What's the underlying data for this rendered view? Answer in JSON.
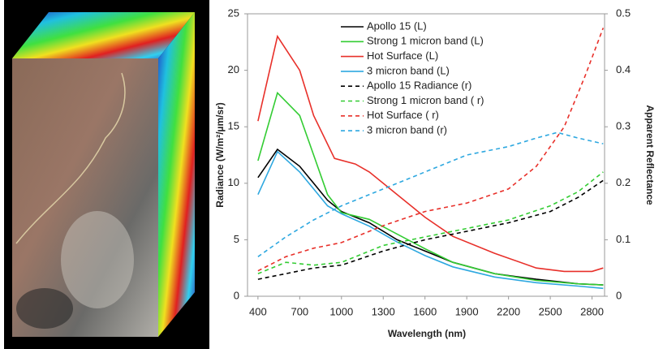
{
  "chart_data": {
    "type": "line",
    "x_label": "Wavelength (nm)",
    "y_label": "Radiance (W/m²/µm/sr)",
    "y2_label": "Apparent Reflectance",
    "xlim": [
      325,
      2890
    ],
    "xticks": [
      400,
      700,
      1000,
      1300,
      1600,
      1900,
      2200,
      2500,
      2800
    ],
    "ylim": [
      0,
      25
    ],
    "yticks": [
      0,
      5,
      10,
      15,
      20,
      25
    ],
    "y2lim": [
      0,
      0.5
    ],
    "y2ticks": [
      0,
      0.1,
      0.2,
      0.3,
      0.4,
      0.5
    ],
    "legend": "upper-left",
    "series": [
      {
        "name": "Apollo 15 (L)",
        "color": "#000000",
        "dashed": false,
        "x": [
          400,
          540,
          700,
          800,
          900,
          1000,
          1200,
          1400,
          1600,
          1800,
          2100,
          2400,
          2700,
          2880
        ],
        "values": [
          10.5,
          13,
          11.5,
          10,
          8.5,
          7.5,
          6.5,
          5,
          4,
          3,
          2,
          1.5,
          1.1,
          1.0
        ]
      },
      {
        "name": "Strong 1 micron band (L)",
        "color": "#33cc33",
        "dashed": false,
        "x": [
          400,
          540,
          700,
          800,
          900,
          1000,
          1200,
          1400,
          1600,
          1800,
          2100,
          2400,
          2700,
          2880
        ],
        "values": [
          12,
          18,
          16,
          12.5,
          9,
          7.4,
          6.8,
          5.5,
          4.2,
          3,
          2,
          1.4,
          1.1,
          1.0
        ]
      },
      {
        "name": "Hot Surface (L)",
        "color": "#e8302a",
        "dashed": false,
        "x": [
          400,
          540,
          700,
          800,
          950,
          1100,
          1200,
          1400,
          1600,
          1800,
          2100,
          2400,
          2600,
          2800,
          2880
        ],
        "values": [
          15.5,
          23,
          20,
          16,
          12.2,
          11.7,
          11,
          9,
          7,
          5.3,
          3.8,
          2.5,
          2.2,
          2.2,
          2.5
        ]
      },
      {
        "name": "3 micron band (L)",
        "color": "#2ea8e0",
        "dashed": false,
        "x": [
          400,
          540,
          700,
          800,
          900,
          1000,
          1200,
          1400,
          1600,
          1800,
          2100,
          2400,
          2700,
          2880
        ],
        "values": [
          9,
          12.8,
          11,
          9.5,
          8,
          7.3,
          6.2,
          4.8,
          3.6,
          2.6,
          1.7,
          1.2,
          0.9,
          0.7
        ]
      },
      {
        "name": "Apollo 15 Radiance (r)",
        "color": "#000000",
        "dashed": true,
        "axis": "y2",
        "x": [
          400,
          600,
          800,
          1000,
          1300,
          1600,
          1900,
          2200,
          2500,
          2700,
          2880
        ],
        "values": [
          0.03,
          0.04,
          0.05,
          0.055,
          0.08,
          0.1,
          0.115,
          0.13,
          0.15,
          0.175,
          0.205
        ]
      },
      {
        "name": "Strong 1 micron band ( r)",
        "color": "#33cc33",
        "dashed": true,
        "axis": "y2",
        "x": [
          400,
          600,
          800,
          1000,
          1300,
          1600,
          1900,
          2200,
          2500,
          2700,
          2880
        ],
        "values": [
          0.04,
          0.06,
          0.055,
          0.06,
          0.09,
          0.105,
          0.12,
          0.135,
          0.16,
          0.185,
          0.22
        ]
      },
      {
        "name": "Hot Surface ( r)",
        "color": "#e8302a",
        "dashed": true,
        "axis": "y2",
        "x": [
          400,
          600,
          800,
          1000,
          1300,
          1600,
          1900,
          2200,
          2400,
          2600,
          2750,
          2880
        ],
        "values": [
          0.045,
          0.07,
          0.085,
          0.095,
          0.125,
          0.15,
          0.165,
          0.19,
          0.23,
          0.3,
          0.39,
          0.475
        ]
      },
      {
        "name": "3 micron band (r)",
        "color": "#2ea8e0",
        "dashed": true,
        "axis": "y2",
        "x": [
          400,
          600,
          800,
          1000,
          1300,
          1600,
          1900,
          2200,
          2400,
          2550,
          2700,
          2880
        ],
        "values": [
          0.07,
          0.105,
          0.135,
          0.16,
          0.19,
          0.22,
          0.25,
          0.265,
          0.28,
          0.29,
          0.28,
          0.27
        ]
      }
    ]
  }
}
